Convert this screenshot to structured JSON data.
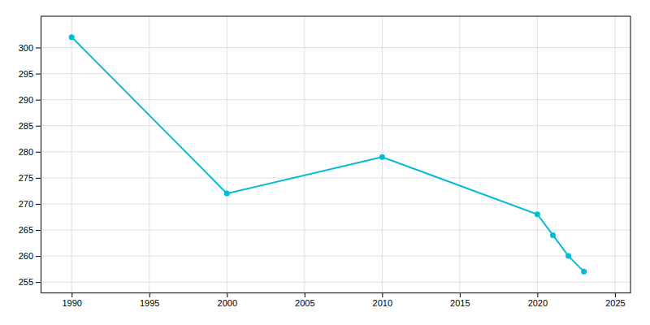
{
  "chart_data": {
    "type": "line",
    "x": [
      1990,
      2000,
      2010,
      2020,
      2021,
      2022,
      2023
    ],
    "values": [
      302,
      272,
      279,
      268,
      264,
      260,
      257
    ],
    "color": "#00BCD4",
    "marker": "circle",
    "xlim": [
      1988,
      2026
    ],
    "ylim": [
      253,
      306
    ],
    "xticks": [
      1990,
      1995,
      2000,
      2005,
      2010,
      2015,
      2020,
      2025
    ],
    "yticks": [
      255,
      260,
      265,
      270,
      275,
      280,
      285,
      290,
      295,
      300
    ],
    "grid": true
  }
}
